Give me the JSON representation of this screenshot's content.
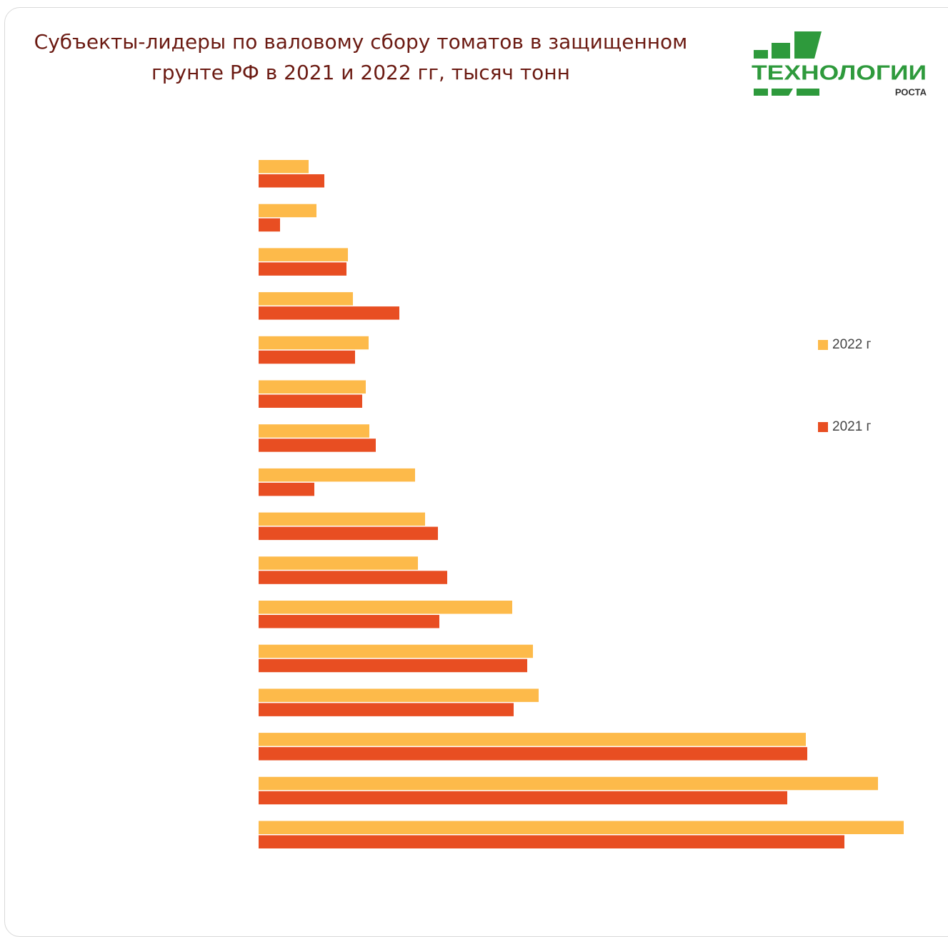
{
  "chart_data": {
    "type": "hbar",
    "title": [
      "Субъекты-лидеры по валовому сбору томатов в защищенном",
      "грунте РФ в 2021 и 2022 гг, тысяч тонн"
    ],
    "categories": [
      null,
      null,
      null,
      null,
      null,
      null,
      null,
      null,
      null,
      null,
      null,
      null,
      null,
      null,
      null,
      null
    ],
    "series": [
      {
        "name": "2022 г",
        "color": "#fdba4a",
        "values": [
          14,
          16.2,
          25,
          26.4,
          30.8,
          30,
          31,
          43.8,
          46.6,
          44.6,
          71,
          76.8,
          78.4,
          153.2,
          173.4,
          180.6
        ]
      },
      {
        "name": "2021 г",
        "color": "#e84e22",
        "values": [
          18.4,
          6,
          24.6,
          39.4,
          27,
          29,
          32.8,
          15.6,
          50.2,
          52.8,
          50.6,
          75.2,
          71.4,
          153.6,
          148,
          164
        ]
      }
    ],
    "xlim": [
      0,
      190
    ],
    "grid": false,
    "legend": "right"
  },
  "logo": {
    "main": "ТЕХНОЛОГИИ",
    "sub": "РОСТА"
  }
}
